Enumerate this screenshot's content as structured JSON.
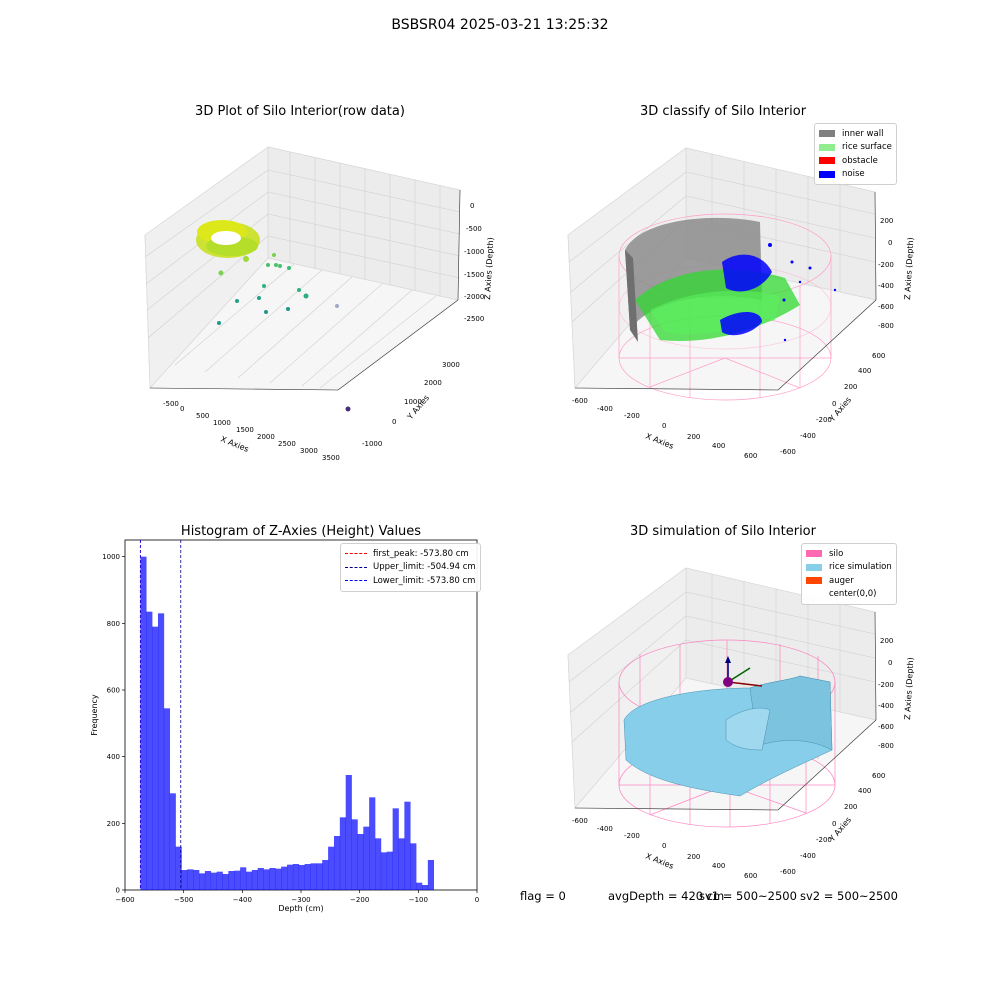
{
  "header": {
    "title": "BSBSR04 2025-03-21 13:25:32"
  },
  "raw_plot": {
    "title": "3D Plot of Silo Interior(row data)",
    "xlabel": "X Axies",
    "ylabel": "Y Axies",
    "zlabel": "Z Axies (Depth)",
    "xticks": [
      "-500",
      "0",
      "500",
      "1000",
      "1500",
      "2000",
      "2500",
      "3000",
      "3500"
    ],
    "yticks": [
      "-1000",
      "0",
      "1000",
      "2000",
      "3000"
    ],
    "zticks": [
      "0",
      "-500",
      "-1000",
      "-1500",
      "-2000",
      "-2500"
    ]
  },
  "classify_plot": {
    "title": "3D classify of Silo Interior",
    "xlabel": "X Axies",
    "ylabel": "Y Axies",
    "zlabel": "Z Axies (Depth)",
    "xticks": [
      "-600",
      "-400",
      "-200",
      "0",
      "200",
      "400",
      "600"
    ],
    "yticks": [
      "-600",
      "-400",
      "-200",
      "0",
      "200",
      "400",
      "600"
    ],
    "zticks": [
      "200",
      "0",
      "-200",
      "-400",
      "-600",
      "-800"
    ],
    "legend": [
      {
        "label": "inner wall",
        "color": "#808080"
      },
      {
        "label": "rice surface",
        "color": "#90ee90"
      },
      {
        "label": "obstacle",
        "color": "#ff0000"
      },
      {
        "label": "noise",
        "color": "#0000ff"
      }
    ]
  },
  "sim_plot": {
    "title": "3D simulation of Silo Interior",
    "xlabel": "X Axies",
    "ylabel": "Y Axies",
    "zlabel": "Z Axies (Depth)",
    "xticks": [
      "-600",
      "-400",
      "-200",
      "0",
      "200",
      "400",
      "600"
    ],
    "yticks": [
      "-600",
      "-400",
      "-200",
      "0",
      "200",
      "400",
      "600"
    ],
    "zticks": [
      "200",
      "0",
      "-200",
      "-400",
      "-600",
      "-800"
    ],
    "legend": [
      {
        "label": "silo",
        "color": "#ff69b4"
      },
      {
        "label": "rice simulation",
        "color": "#87ceeb"
      },
      {
        "label": "auger",
        "color": "#ff4500"
      },
      {
        "label": "center(0,0)",
        "color": ""
      }
    ]
  },
  "footer": {
    "flag": "flag = 0",
    "avg_depth": "avgDepth = 420 cm",
    "sv1": "sv1 = 500~2500",
    "sv2": "sv2 = 500~2500"
  },
  "chart_data": {
    "type": "bar",
    "title": "Histogram of Z-Axies (Height) Values",
    "xlabel": "Depth (cm)",
    "ylabel": "Frequency",
    "xlim": [
      -600,
      0
    ],
    "ylim": [
      0,
      1050
    ],
    "xticks": [
      -600,
      -500,
      -400,
      -300,
      -200,
      -100,
      0
    ],
    "yticks": [
      0,
      200,
      400,
      600,
      800,
      1000
    ],
    "bin_width": 10,
    "bin_start": -573.8,
    "bar_color": "#0000ff",
    "values": [
      1000,
      835,
      790,
      830,
      545,
      290,
      130,
      60,
      62,
      60,
      50,
      57,
      52,
      55,
      48,
      57,
      58,
      68,
      55,
      60,
      66,
      62,
      66,
      64,
      70,
      76,
      78,
      75,
      78,
      80,
      80,
      90,
      130,
      162,
      218,
      345,
      212,
      168,
      190,
      278,
      155,
      113,
      115,
      245,
      155,
      265,
      140,
      22,
      15,
      90
    ],
    "vlines": [
      {
        "label": "first_peak: -573.80 cm",
        "x": -573.8,
        "color": "#ff0000"
      },
      {
        "label": "Upper_limit: -504.94 cm",
        "x": -504.94,
        "color": "#00008b"
      },
      {
        "label": "Lower_limit: -573.80 cm",
        "x": -573.8,
        "color": "#0000ff"
      }
    ]
  }
}
